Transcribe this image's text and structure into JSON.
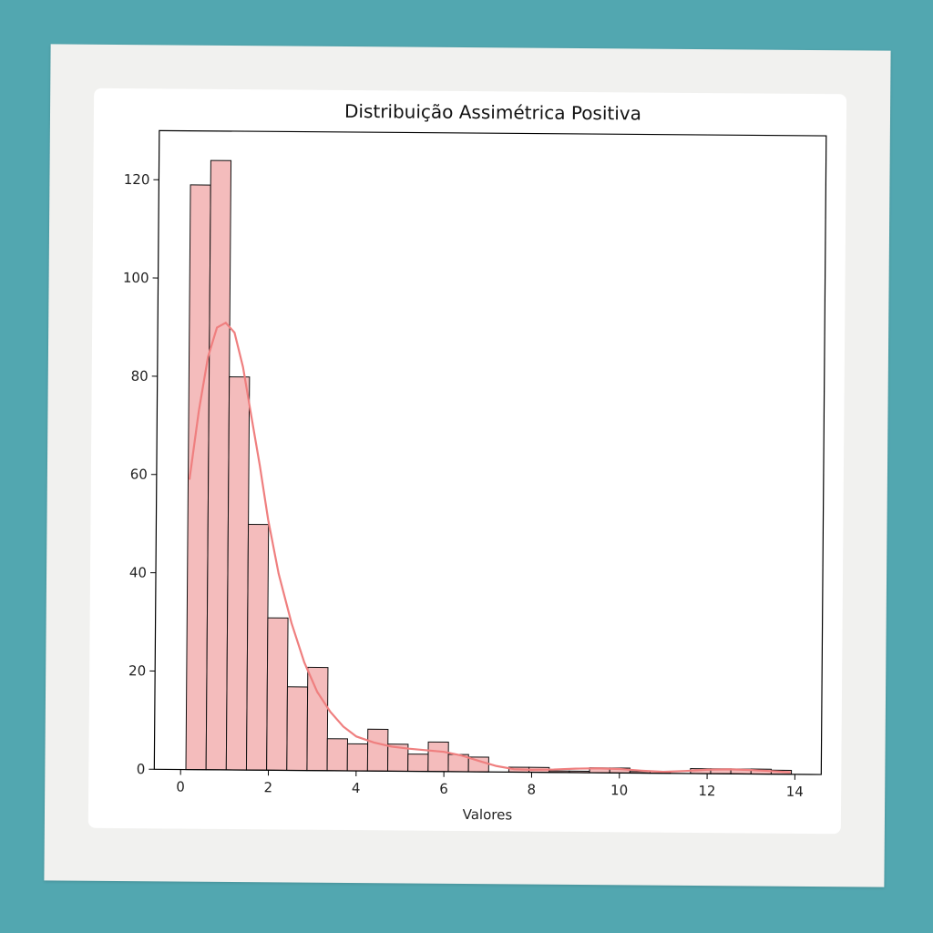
{
  "chart_data": {
    "type": "bar",
    "title": "Distribuição Assimétrica Positiva",
    "xlabel": "Valores",
    "ylabel": "",
    "xlim": [
      -0.6,
      14.6
    ],
    "ylim": [
      0,
      130
    ],
    "xticks": [
      0,
      2,
      4,
      6,
      8,
      10,
      12,
      14
    ],
    "yticks": [
      0,
      20,
      40,
      60,
      80,
      100,
      120
    ],
    "bin_start": 0.12,
    "bin_width": 0.46,
    "counts": [
      119,
      124,
      80,
      50,
      31,
      17,
      21,
      6.5,
      5.5,
      8.5,
      5.5,
      3.5,
      6,
      3.5,
      3,
      0,
      1,
      1,
      0.3,
      0.3,
      1,
      1,
      0.3,
      0.3,
      0,
      1,
      1,
      1,
      1,
      0.8
    ],
    "kde": {
      "x": [
        0.15,
        0.35,
        0.55,
        0.75,
        0.95,
        1.15,
        1.35,
        1.55,
        1.75,
        1.95,
        2.2,
        2.5,
        2.8,
        3.1,
        3.4,
        3.7,
        4.0,
        4.4,
        4.8,
        5.2,
        5.6,
        6.0,
        6.4,
        6.8,
        7.2,
        7.6,
        8.0,
        8.5,
        9.0,
        9.5,
        10.0,
        10.5,
        11.0,
        11.5,
        12.0,
        12.5,
        13.0,
        13.5,
        13.9
      ],
      "y": [
        59,
        73,
        84,
        90,
        91,
        89,
        82,
        72,
        62,
        51,
        40,
        30,
        22,
        16,
        12,
        9,
        7,
        5.8,
        5.0,
        4.6,
        4.3,
        4.0,
        3.3,
        2.2,
        1.2,
        0.6,
        0.5,
        0.6,
        0.8,
        0.9,
        0.8,
        0.5,
        0.3,
        0.5,
        0.8,
        0.9,
        0.8,
        0.6,
        0.4
      ]
    },
    "colors": {
      "bar_fill": "#f4bcbc",
      "bar_edge": "#111111",
      "kde_line": "#ef7f7f",
      "axes": "#000000"
    },
    "grid": false,
    "legend": "none"
  }
}
